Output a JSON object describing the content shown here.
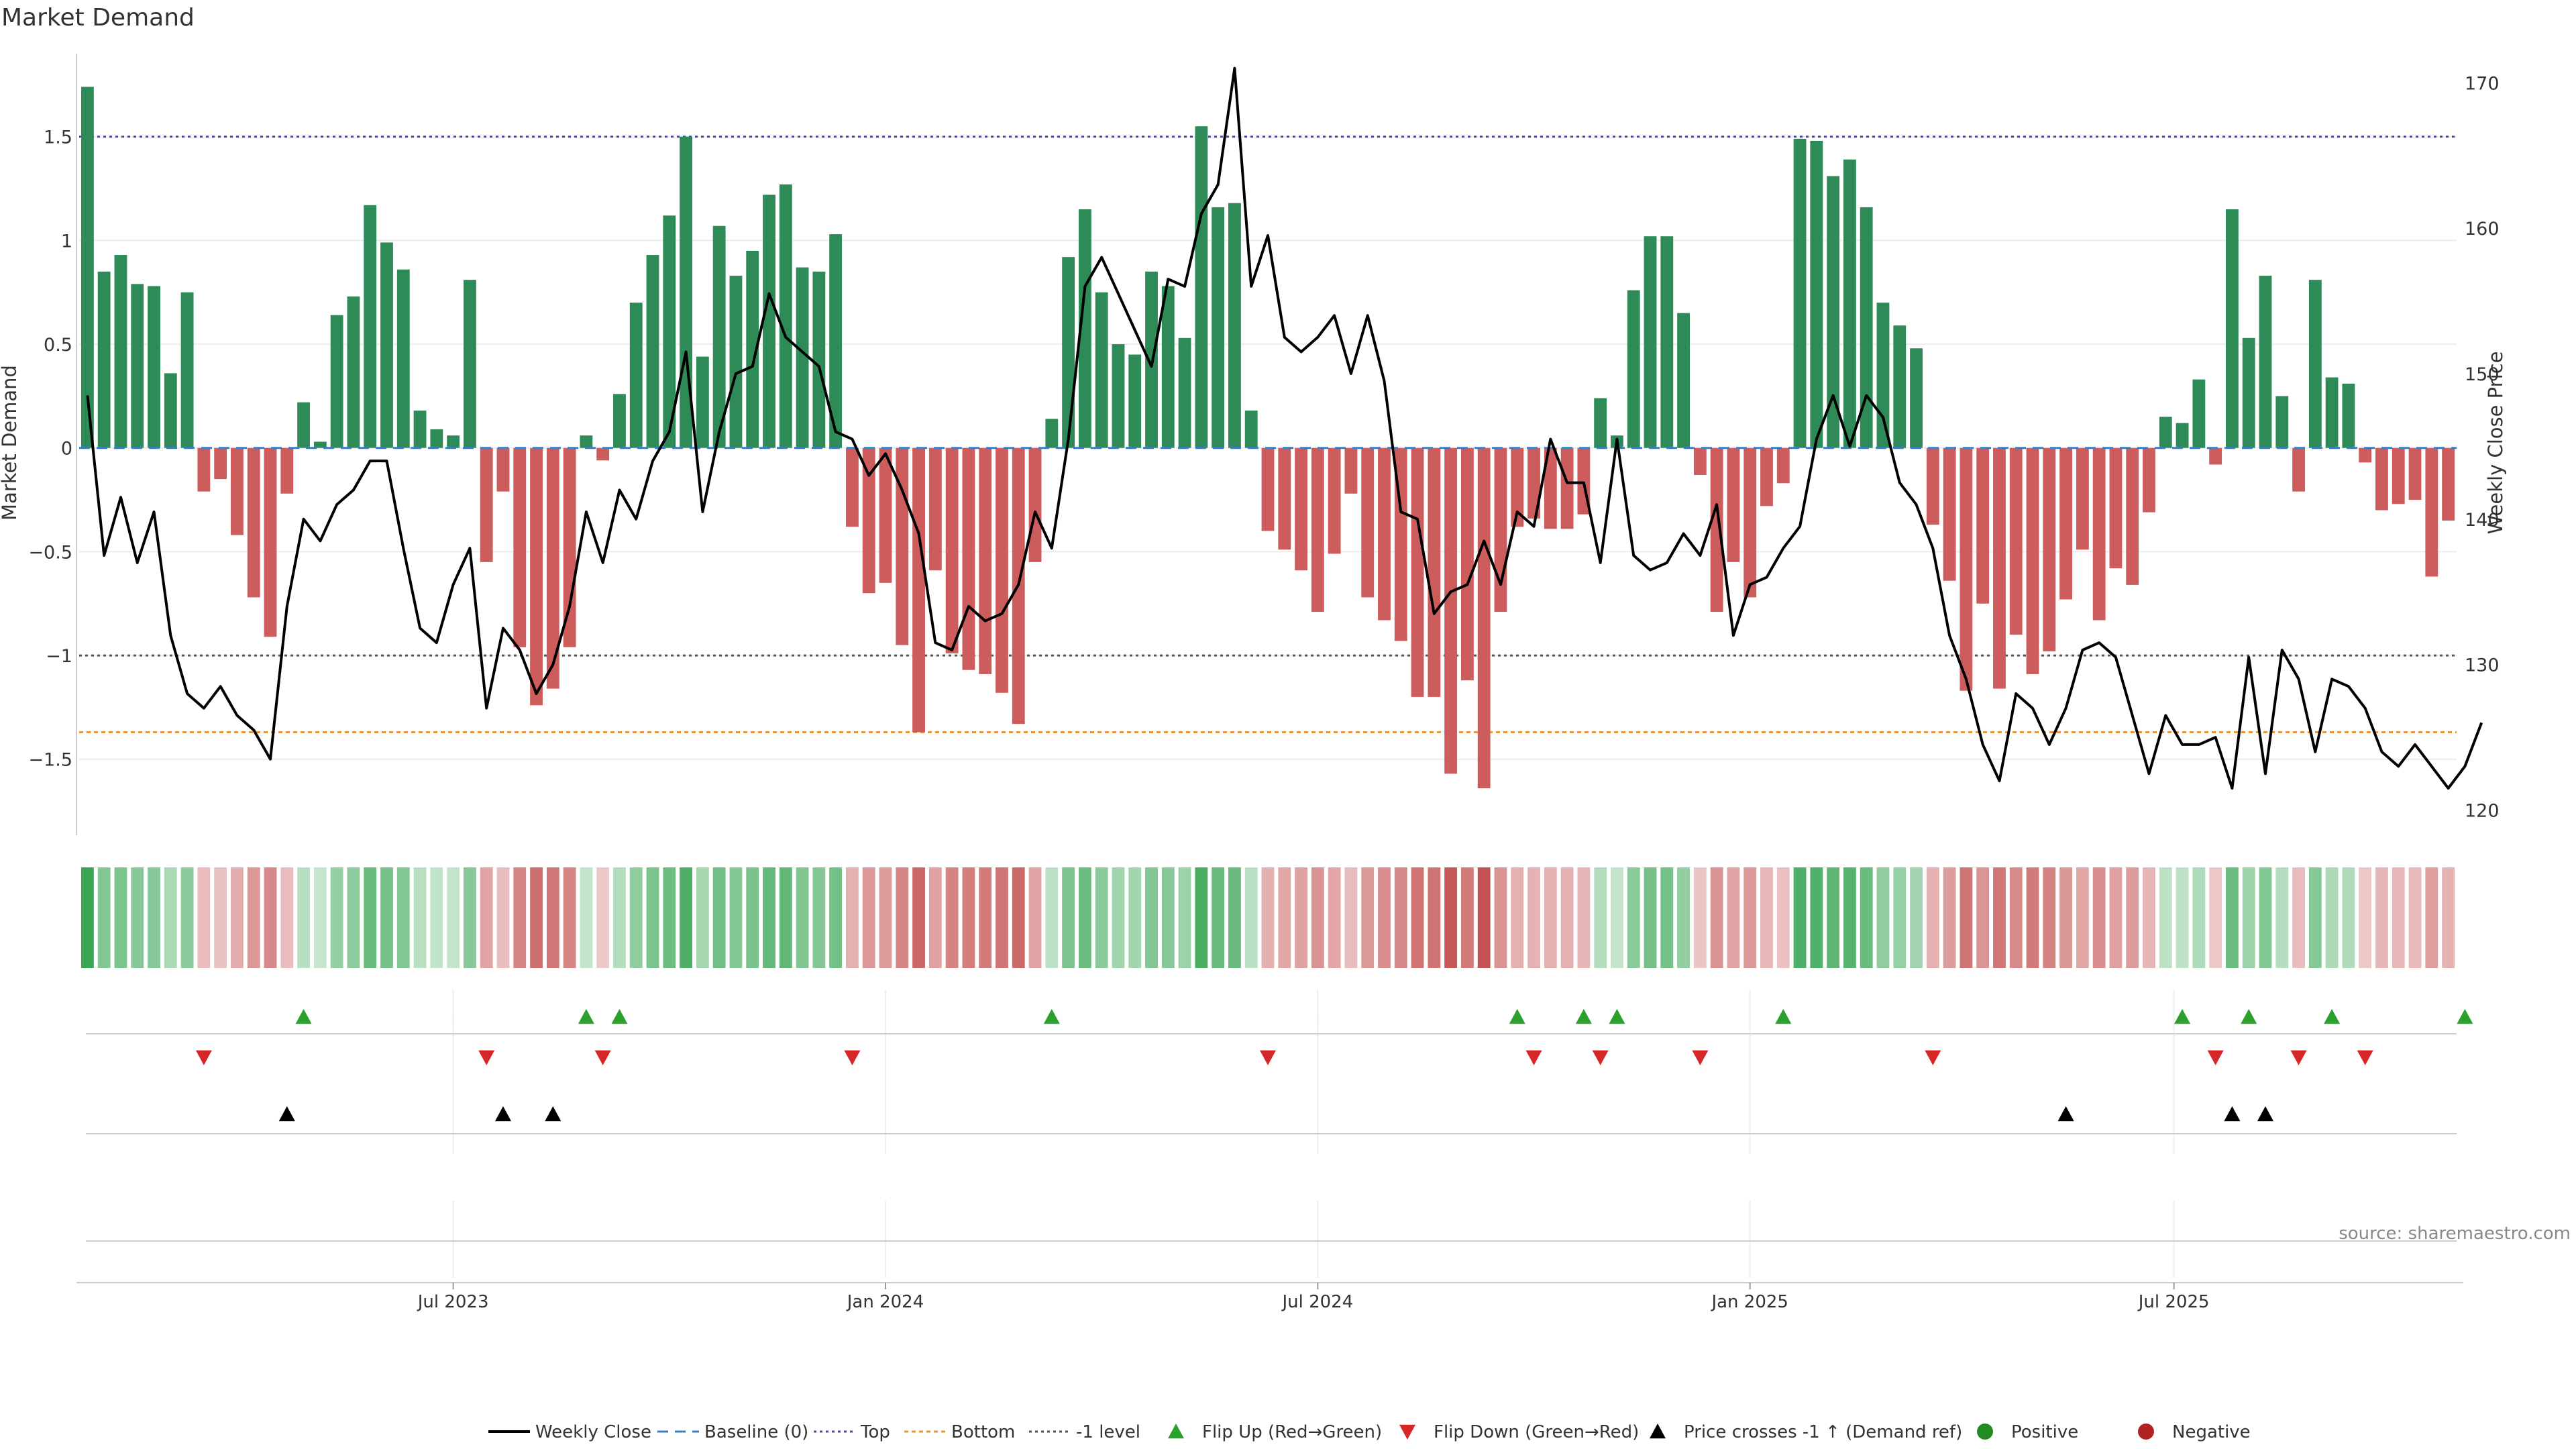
{
  "chart_data": {
    "type": "bar",
    "title": "Market Demand",
    "ylabel": "Market Demand",
    "y2label": "Weekly Close Price",
    "ylim": [
      -1.85,
      1.9
    ],
    "y2lim": [
      118.5,
      172
    ],
    "yticks": [
      1.5,
      1,
      0.5,
      0,
      -0.5,
      -1,
      -1.5
    ],
    "ytick_labels": [
      "1.5",
      "1",
      "0.5",
      "0",
      "−0.5",
      "−1",
      "−1.5"
    ],
    "y2ticks": [
      170,
      160,
      150,
      140,
      130,
      120
    ],
    "y2tick_labels": [
      "170",
      "160",
      "150",
      "140",
      "130",
      "120"
    ],
    "x_tick_positions": [
      22,
      48,
      74,
      100,
      125.5
    ],
    "x_tick_labels": [
      "Jul 2023",
      "Jan 2024",
      "Jul 2024",
      "Jan 2025",
      "Jul 2025"
    ],
    "reference_lines": {
      "top": 1.5,
      "bottom": -1.37,
      "minus_one": -1,
      "baseline": 0
    },
    "colors": {
      "positive": "#2e8b57",
      "negative": "#cd5c5c",
      "price": "#000000",
      "top": "#4a4ea0",
      "bottom": "#e8943a",
      "minus_one": "#555555",
      "baseline": "#3b7dc4",
      "flip_up": "#2ca02c",
      "flip_down": "#d62728",
      "cross": "#000000",
      "positive_dot": "#228b22",
      "negative_dot": "#b22222"
    },
    "series": [
      {
        "name": "Market Demand",
        "values": [
          1.74,
          0.85,
          0.93,
          0.79,
          0.78,
          0.36,
          0.75,
          -0.21,
          -0.15,
          -0.42,
          -0.72,
          -0.91,
          -0.22,
          0.22,
          0.03,
          0.64,
          0.73,
          1.17,
          0.99,
          0.86,
          0.18,
          0.09,
          0.06,
          0.81,
          -0.55,
          -0.21,
          -0.96,
          -1.24,
          -1.16,
          -0.96,
          0.06,
          -0.06,
          0.26,
          0.7,
          0.93,
          1.12,
          1.5,
          0.44,
          1.07,
          0.83,
          0.95,
          1.22,
          1.27,
          0.87,
          0.85,
          1.03,
          -0.38,
          -0.7,
          -0.65,
          -0.95,
          -1.37,
          -0.59,
          -0.99,
          -1.07,
          -1.09,
          -1.18,
          -1.33,
          -0.55,
          0.14,
          0.92,
          1.15,
          0.75,
          0.5,
          0.45,
          0.85,
          0.78,
          0.53,
          1.55,
          1.16,
          1.18,
          0.18,
          -0.4,
          -0.49,
          -0.59,
          -0.79,
          -0.51,
          -0.22,
          -0.72,
          -0.83,
          -0.93,
          -1.2,
          -1.2,
          -1.57,
          -1.12,
          -1.64,
          -0.79,
          -0.38,
          -0.34,
          -0.39,
          -0.39,
          -0.32,
          0.24,
          0.06,
          0.76,
          1.02,
          1.02,
          0.65,
          -0.13,
          -0.79,
          -0.55,
          -0.72,
          -0.28,
          -0.17,
          1.49,
          1.48,
          1.31,
          1.39,
          1.16,
          0.7,
          0.59,
          0.48,
          -0.37,
          -0.64,
          -1.17,
          -0.75,
          -1.16,
          -0.9,
          -1.09,
          -0.98,
          -0.73,
          -0.49,
          -0.83,
          -0.58,
          -0.66,
          -0.31,
          0.15,
          0.12,
          0.33,
          -0.08,
          1.15,
          0.53,
          0.83,
          0.25,
          -0.21,
          0.81,
          0.34,
          0.31,
          -0.07,
          -0.3,
          -0.27,
          -0.25,
          -0.62,
          -0.35
        ]
      },
      {
        "name": "Weekly Close",
        "values": [
          148.5,
          137.5,
          141.5,
          137,
          140.5,
          132,
          128,
          127,
          128.5,
          126.5,
          125.5,
          123.5,
          134,
          140,
          138.5,
          141,
          142,
          144,
          144,
          138,
          132.5,
          131.5,
          135.5,
          138,
          127,
          132.5,
          131,
          128,
          130,
          134,
          140.5,
          137,
          142,
          140,
          144,
          146,
          151.5,
          140.5,
          146,
          150,
          150.5,
          155.5,
          152.5,
          151.5,
          150.5,
          146,
          145.5,
          143,
          144.5,
          142,
          139,
          131.5,
          131,
          134,
          133,
          133.5,
          135.5,
          140.5,
          138,
          145.5,
          156,
          158,
          155.5,
          153,
          150.5,
          156.5,
          156,
          161,
          163,
          171,
          156,
          159.5,
          152.5,
          151.5,
          152.5,
          154,
          150,
          154,
          149.5,
          140.5,
          140,
          133.5,
          135,
          135.5,
          138.5,
          135.5,
          140.5,
          139.5,
          145.5,
          142.5,
          142.5,
          137,
          145.5,
          137.5,
          136.5,
          137,
          139,
          137.5,
          141,
          132,
          135.5,
          136,
          138,
          139.5,
          145.5,
          148.5,
          145,
          148.5,
          147,
          142.5,
          141,
          138,
          132,
          129,
          124.5,
          122,
          128,
          127,
          124.5,
          127,
          131,
          131.5,
          130.5,
          126.5,
          122.5,
          126.5,
          124.5,
          124.5,
          125,
          121.5,
          130.5,
          122.5,
          131,
          129,
          124,
          129,
          128.5,
          127,
          124,
          123,
          124.5,
          123,
          121.5,
          123,
          126
        ]
      },
      {
        "name": "Flip Up (Red→Green)",
        "x": [
          13,
          30,
          32,
          58,
          86,
          90,
          92,
          102,
          126,
          130,
          135,
          143
        ]
      },
      {
        "name": "Flip Down (Green→Red)",
        "x": [
          7,
          24,
          31,
          46,
          71,
          87,
          91,
          97,
          111,
          128,
          133,
          137
        ]
      },
      {
        "name": "Price crosses -1 ↑ (Demand ref)",
        "x": [
          12,
          25,
          28,
          119,
          129,
          131
        ]
      }
    ],
    "legend": [
      "Weekly Close",
      "Baseline (0)",
      "Top",
      "Bottom",
      "-1 level",
      "Flip Up (Red→Green)",
      "Flip Down (Green→Red)",
      "Price crosses -1 ↑ (Demand ref)",
      "Positive",
      "Negative"
    ],
    "legend_position": "bottom-center",
    "source": "source: sharemaestro.com"
  }
}
